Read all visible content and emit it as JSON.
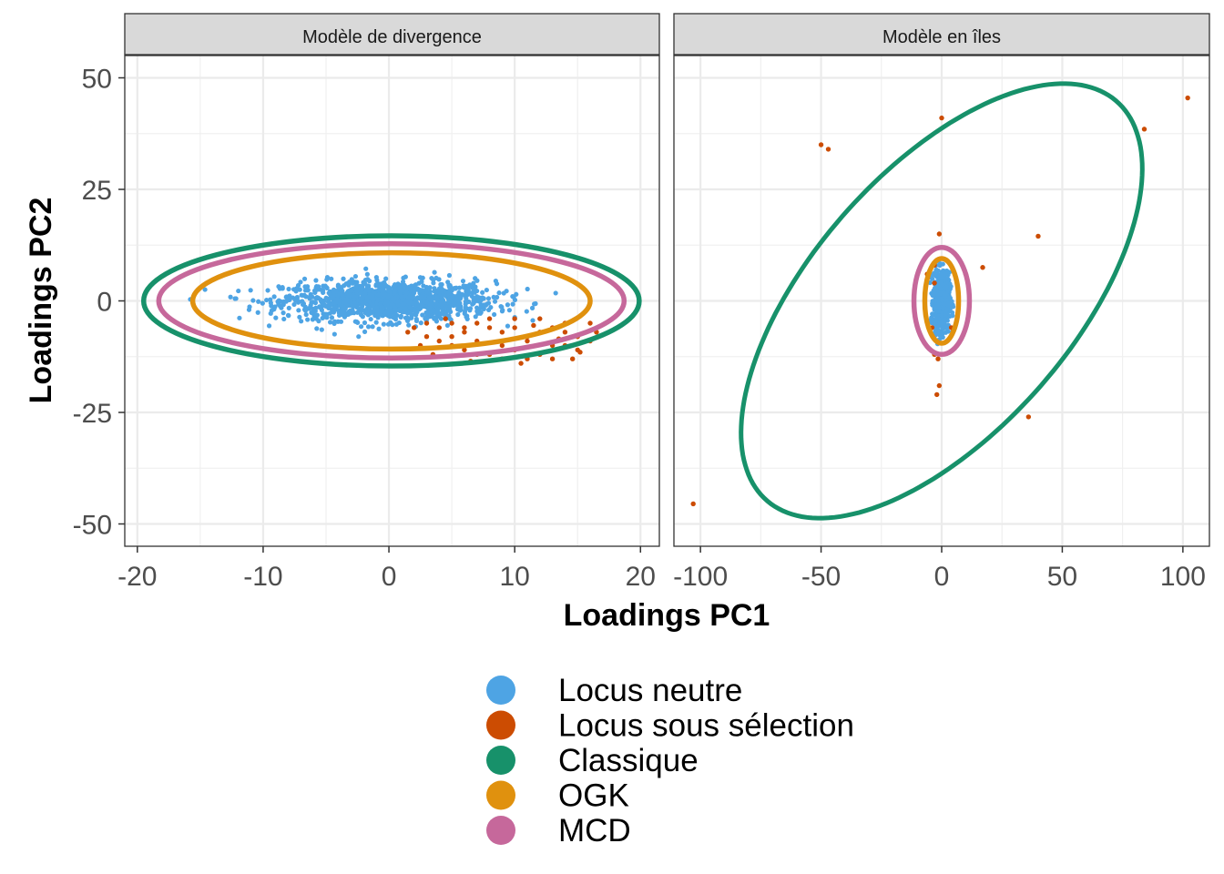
{
  "chart_data": {
    "type": "scatter",
    "y_axis_title": "Loadings PC2",
    "x_axis_title": "Loadings PC1",
    "ylim": [
      -55,
      55
    ],
    "y_ticks": [
      -50,
      -25,
      0,
      25,
      50
    ],
    "y_tick_labels": [
      "-50",
      "-25",
      "0",
      "25",
      "50"
    ],
    "grid": true,
    "legend_position": "bottom",
    "legend": [
      {
        "label": "Locus neutre",
        "color": "#4ea4e4"
      },
      {
        "label": "Locus sous sélection",
        "color": "#cc4c02"
      },
      {
        "label": "Classique",
        "color": "#17916a"
      },
      {
        "label": "OGK",
        "color": "#e0910e"
      },
      {
        "label": "MCD",
        "color": "#c6689b"
      }
    ],
    "panels": [
      {
        "title": "Modèle de divergence",
        "xlim": [
          -21,
          21.5
        ],
        "x_ticks": [
          -20,
          -10,
          0,
          10,
          20
        ],
        "x_tick_labels": [
          "-20",
          "-10",
          "0",
          "10",
          "20"
        ],
        "neutral_cloud": {
          "center": [
            0,
            0
          ],
          "sd": [
            4.2,
            2.2
          ],
          "count": 1300,
          "x_range": [
            -17,
            14
          ],
          "y_range": [
            -8,
            9
          ]
        },
        "selection_points": [
          [
            3,
            -5
          ],
          [
            4,
            -6
          ],
          [
            5,
            -5
          ],
          [
            6,
            -7
          ],
          [
            7,
            -5
          ],
          [
            8,
            -6
          ],
          [
            9,
            -7
          ],
          [
            10,
            -6
          ],
          [
            11,
            -8
          ],
          [
            12,
            -7
          ],
          [
            13,
            -6
          ],
          [
            14,
            -7
          ],
          [
            15,
            -8
          ],
          [
            16,
            -9
          ],
          [
            13,
            -10
          ],
          [
            11,
            -9
          ],
          [
            9,
            -10
          ],
          [
            7,
            -9
          ],
          [
            5,
            -8
          ],
          [
            4,
            -9
          ],
          [
            6,
            -11
          ],
          [
            8,
            -12
          ],
          [
            10,
            -11
          ],
          [
            12,
            -12
          ],
          [
            14,
            -10
          ],
          [
            3,
            -8
          ],
          [
            2,
            -6
          ],
          [
            5,
            -10
          ],
          [
            7,
            -12
          ],
          [
            9,
            -13
          ],
          [
            11,
            -13
          ],
          [
            13,
            -13
          ],
          [
            15,
            -11
          ],
          [
            16,
            -5
          ],
          [
            12,
            -4
          ],
          [
            10,
            -4
          ],
          [
            8,
            -4
          ],
          [
            15.2,
            -11.5
          ],
          [
            14.6,
            -13
          ],
          [
            3.5,
            -12
          ],
          [
            2.5,
            -10
          ],
          [
            1.5,
            -7
          ],
          [
            6.5,
            -13.5
          ],
          [
            10.5,
            -14
          ],
          [
            14,
            -5
          ],
          [
            16.5,
            -7
          ],
          [
            4.5,
            -4
          ],
          [
            11.5,
            -5.5
          ],
          [
            13.5,
            -8.5
          ],
          [
            6,
            -6
          ]
        ],
        "ellipses": [
          {
            "name": "Classique",
            "center": [
              0.2,
              0
            ],
            "rx": 19.7,
            "ry": 14.6,
            "angle_deg": 0
          },
          {
            "name": "MCD",
            "center": [
              0.2,
              0
            ],
            "rx": 18.5,
            "ry": 12.8,
            "angle_deg": 0
          },
          {
            "name": "OGK",
            "center": [
              0.2,
              0
            ],
            "rx": 15.8,
            "ry": 10.8,
            "angle_deg": 0
          }
        ]
      },
      {
        "title": "Modèle en îles",
        "xlim": [
          -111,
          111
        ],
        "x_ticks": [
          -100,
          -50,
          0,
          50,
          100
        ],
        "x_tick_labels": [
          "-100",
          "-50",
          "0",
          "50",
          "100"
        ],
        "neutral_cloud": {
          "center": [
            0,
            0
          ],
          "sd": [
            1.6,
            3.2
          ],
          "count": 700,
          "x_range": [
            -5,
            5
          ],
          "y_range": [
            -10,
            10
          ]
        },
        "selection_points": [
          [
            0,
            41
          ],
          [
            -50,
            35
          ],
          [
            -47,
            34
          ],
          [
            84,
            38.5
          ],
          [
            102,
            45.5
          ],
          [
            40,
            14.5
          ],
          [
            17,
            7.5
          ],
          [
            -1,
            15
          ],
          [
            -103,
            -45.5
          ],
          [
            36,
            -26
          ],
          [
            -1,
            -19
          ],
          [
            -2,
            -21
          ],
          [
            -1.5,
            -13
          ],
          [
            -3,
            -12
          ],
          [
            -4,
            -6
          ],
          [
            -3,
            8
          ],
          [
            10,
            6
          ],
          [
            -3,
            4
          ],
          [
            4,
            -6
          ],
          [
            -6,
            6
          ]
        ],
        "ellipses": [
          {
            "name": "Classique",
            "center": [
              0,
              0
            ],
            "rx": 83,
            "ry": 47,
            "angle_deg": 0,
            "tilt": true
          },
          {
            "name": "MCD",
            "center": [
              0,
              0
            ],
            "rx": 11.5,
            "ry": 12,
            "angle_deg": 0
          },
          {
            "name": "OGK",
            "center": [
              0,
              0
            ],
            "rx": 7,
            "ry": 9.5,
            "angle_deg": 0
          }
        ]
      }
    ]
  }
}
